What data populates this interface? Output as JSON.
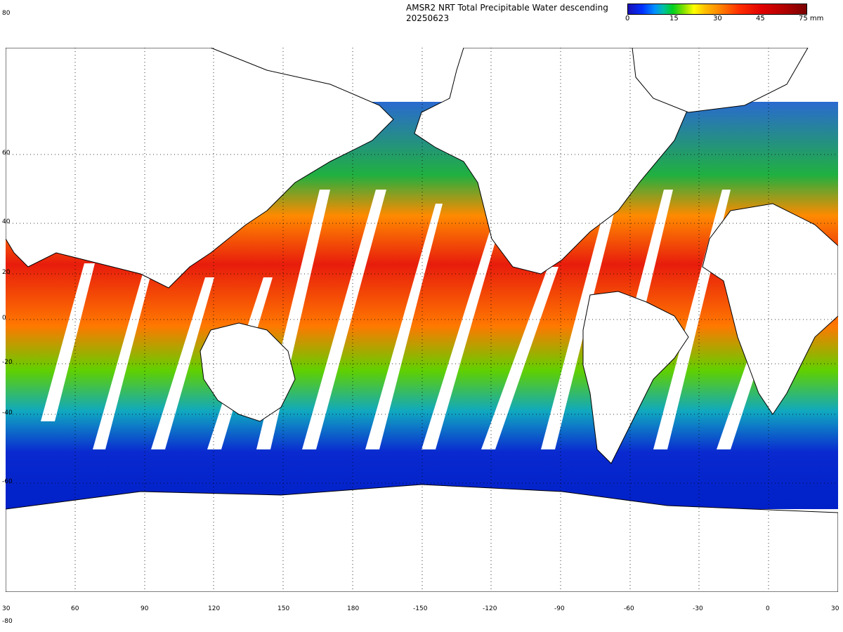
{
  "title": {
    "line1": "AMSR2 NRT Total Precipitable Water descending",
    "line2": "20250623"
  },
  "colorbar": {
    "ticks": [
      "0",
      "15",
      "30",
      "45",
      "75 mm"
    ],
    "tick_values": [
      0,
      15,
      30,
      45,
      75
    ]
  },
  "corner_labels": {
    "top": "80",
    "bottom": "-80"
  },
  "lat_labels": [
    "60",
    "40",
    "20",
    "0",
    "-20",
    "-40",
    "-60"
  ],
  "lon_labels": [
    "30",
    "60",
    "90",
    "120",
    "150",
    "180",
    "-150",
    "-120",
    "-90",
    "-60",
    "-30",
    "0",
    "30"
  ],
  "colors": {
    "low": "#0a1fd0",
    "mid": "#00c050",
    "high": "#ff9000",
    "very_high": "#e01010"
  }
}
